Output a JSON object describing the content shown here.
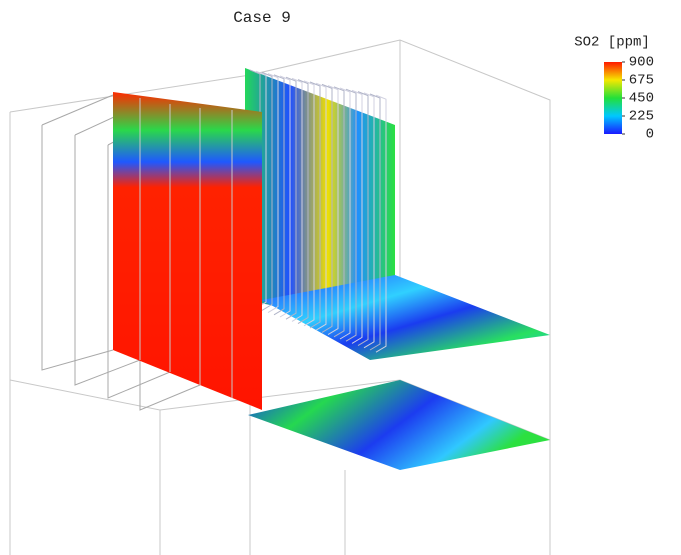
{
  "title": "Case 9",
  "colorbar": {
    "label": "SO2 [ppm]",
    "lim": [
      0,
      900
    ],
    "ticks": [
      900,
      675,
      450,
      225,
      0
    ],
    "colors": [
      "#1a1aff",
      "#00c8ff",
      "#22e03a",
      "#f5e800",
      "#ff1a00"
    ]
  }
}
